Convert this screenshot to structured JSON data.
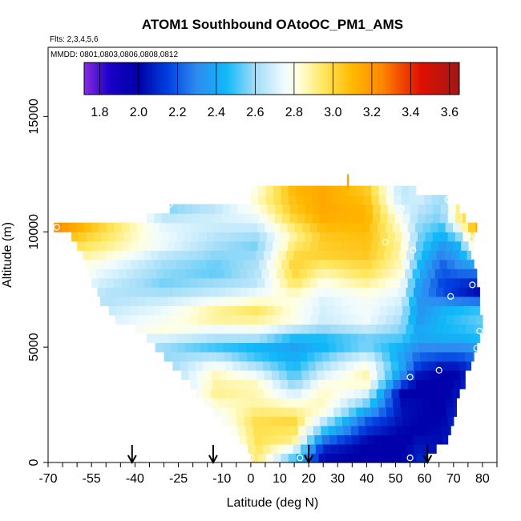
{
  "chart_data": {
    "type": "heatmap",
    "title": "ATOM1 Southbound OAtoOC_PM1_AMS",
    "flights_note": "Flts: 2,3,4,5,6",
    "dates_note": "MMDD: 0801,0803,0806,0808,0812",
    "xlabel": "Latitude (deg N)",
    "ylabel": "Altitude (m)",
    "xlim": [
      -70,
      85
    ],
    "ylim": [
      0,
      18000
    ],
    "x_tick_labels": [
      -70,
      -55,
      -40,
      -25,
      -10,
      0,
      10,
      20,
      30,
      40,
      50,
      60,
      70,
      80
    ],
    "y_tick_labels": [
      0,
      5000,
      10000,
      15000
    ],
    "colorbar": {
      "min": 1.72,
      "max": 3.65,
      "tick_labels": [
        "1.8",
        "2.0",
        "2.2",
        "2.4",
        "2.6",
        "2.8",
        "3.0",
        "3.2",
        "3.4",
        "3.6"
      ],
      "tick_values": [
        1.8,
        2.0,
        2.2,
        2.4,
        2.6,
        2.8,
        3.0,
        3.2,
        3.4,
        3.6
      ],
      "stops": [
        {
          "v": 1.72,
          "color": "#8a2be2"
        },
        {
          "v": 1.85,
          "color": "#1a00c8"
        },
        {
          "v": 2.0,
          "color": "#0000a8"
        },
        {
          "v": 2.15,
          "color": "#0040e0"
        },
        {
          "v": 2.3,
          "color": "#2e8cf0"
        },
        {
          "v": 2.45,
          "color": "#10b8f8"
        },
        {
          "v": 2.6,
          "color": "#a0dcf8"
        },
        {
          "v": 2.75,
          "color": "#f0fbff"
        },
        {
          "v": 2.82,
          "color": "#ffffe0"
        },
        {
          "v": 2.95,
          "color": "#ffe860"
        },
        {
          "v": 3.1,
          "color": "#ffb800"
        },
        {
          "v": 3.25,
          "color": "#ff8800"
        },
        {
          "v": 3.45,
          "color": "#e01000"
        },
        {
          "v": 3.65,
          "color": "#a01818"
        }
      ]
    },
    "arrow_latitudes": [
      -41,
      -13,
      20,
      61
    ],
    "sample_points": [
      {
        "lat": -67,
        "alt": 10200
      },
      {
        "lat": -28,
        "alt": 11200
      },
      {
        "lat": -47.5,
        "alt": 6100
      },
      {
        "lat": -42,
        "alt": 5800
      },
      {
        "lat": 46.5,
        "alt": 9550
      },
      {
        "lat": 52,
        "alt": 11000
      },
      {
        "lat": 56,
        "alt": 9200
      },
      {
        "lat": 68,
        "alt": 11400
      },
      {
        "lat": 76,
        "alt": 9700
      },
      {
        "lat": 76.5,
        "alt": 7700
      },
      {
        "lat": 69,
        "alt": 7200
      },
      {
        "lat": 79,
        "alt": 5700
      },
      {
        "lat": 78,
        "alt": 4950
      },
      {
        "lat": 65,
        "alt": 4000
      },
      {
        "lat": 55,
        "alt": 3700
      },
      {
        "lat": 0,
        "alt": 200
      },
      {
        "lat": 17,
        "alt": 200
      },
      {
        "lat": 55,
        "alt": 200
      }
    ],
    "grid": false
  }
}
